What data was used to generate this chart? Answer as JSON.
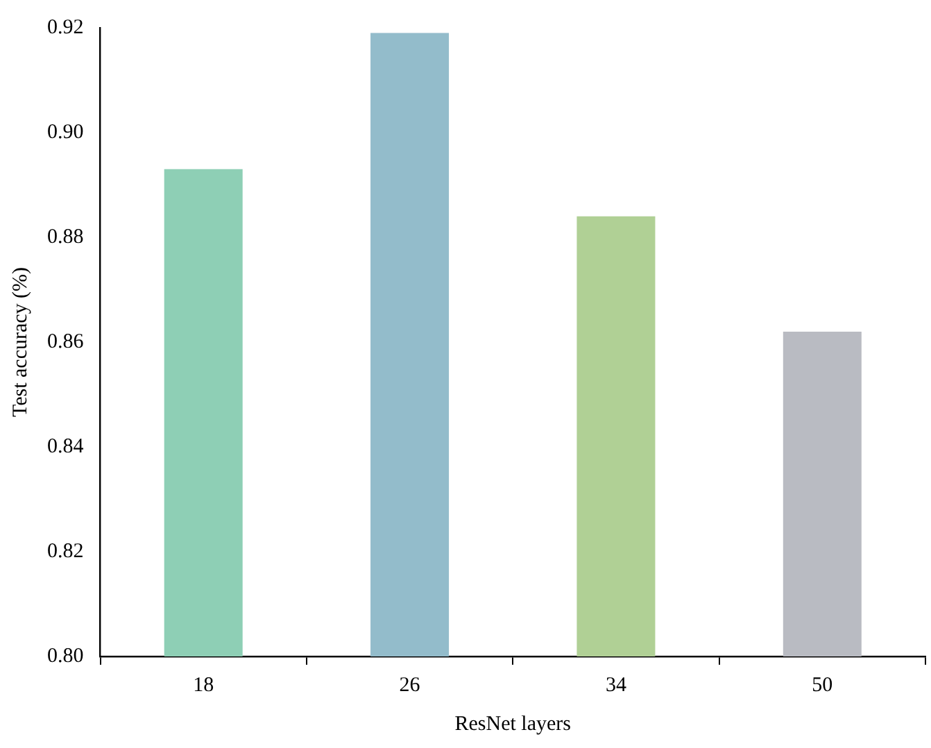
{
  "chart_data": {
    "type": "bar",
    "xlabel": "ResNet layers",
    "ylabel": "Test accuracy (%)",
    "categories": [
      "18",
      "26",
      "34",
      "50"
    ],
    "values": [
      0.893,
      0.919,
      0.884,
      0.862
    ],
    "colors": [
      "#8ecfb5",
      "#93bccb",
      "#b0d095",
      "#b9bbc2"
    ],
    "ylim": [
      0.8,
      0.92
    ],
    "yticks": [
      {
        "value": 0.8,
        "label": "0.80"
      },
      {
        "value": 0.82,
        "label": "0.82"
      },
      {
        "value": 0.84,
        "label": "0.84"
      },
      {
        "value": 0.86,
        "label": "0.86"
      },
      {
        "value": 0.88,
        "label": "0.88"
      },
      {
        "value": 0.9,
        "label": "0.90"
      },
      {
        "value": 0.92,
        "label": "0.92"
      }
    ],
    "grid": false,
    "legend": false
  }
}
